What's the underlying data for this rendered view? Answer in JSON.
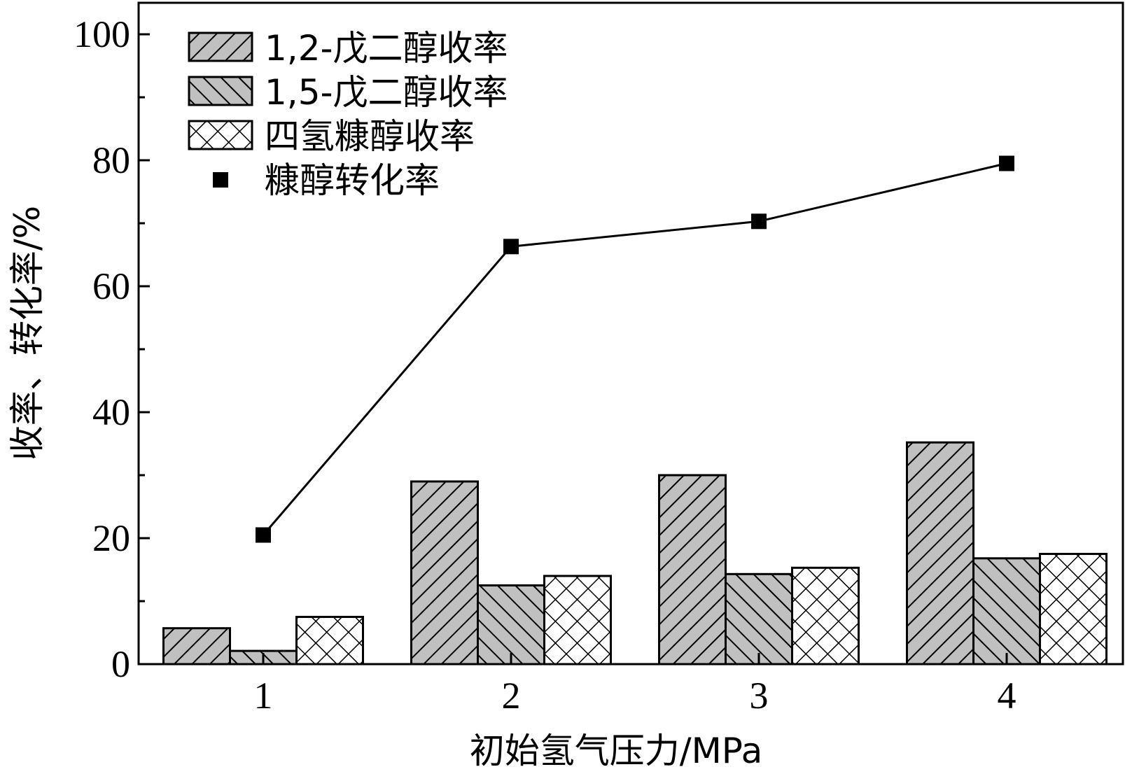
{
  "chart_data": {
    "type": "bar",
    "xlabel": "初始氢气压力/MPa",
    "ylabel": "收率、转化率/%",
    "categories": [
      "1",
      "2",
      "3",
      "4"
    ],
    "ylim": [
      0,
      105
    ],
    "yticks": [
      0,
      20,
      40,
      60,
      80,
      100
    ],
    "legend_position": "top-left",
    "series": [
      {
        "name": "1,2-戊二醇收率",
        "type": "bar",
        "pattern": "diag-right",
        "values": [
          5.7,
          29.0,
          30.0,
          35.2
        ]
      },
      {
        "name": "1,5-戊二醇收率",
        "type": "bar",
        "pattern": "diag-left",
        "values": [
          2.1,
          12.5,
          14.3,
          16.8
        ]
      },
      {
        "name": "四氢糠醇收率",
        "type": "bar",
        "pattern": "crosshatch",
        "values": [
          7.5,
          14.0,
          15.3,
          17.5
        ]
      },
      {
        "name": "糠醇转化率",
        "type": "line",
        "marker": "square",
        "values": [
          20.5,
          66.3,
          70.3,
          79.5
        ]
      }
    ],
    "colors": {
      "bar_fill": "#c0c0c0",
      "hatch": "#000000",
      "line": "#000000"
    }
  }
}
